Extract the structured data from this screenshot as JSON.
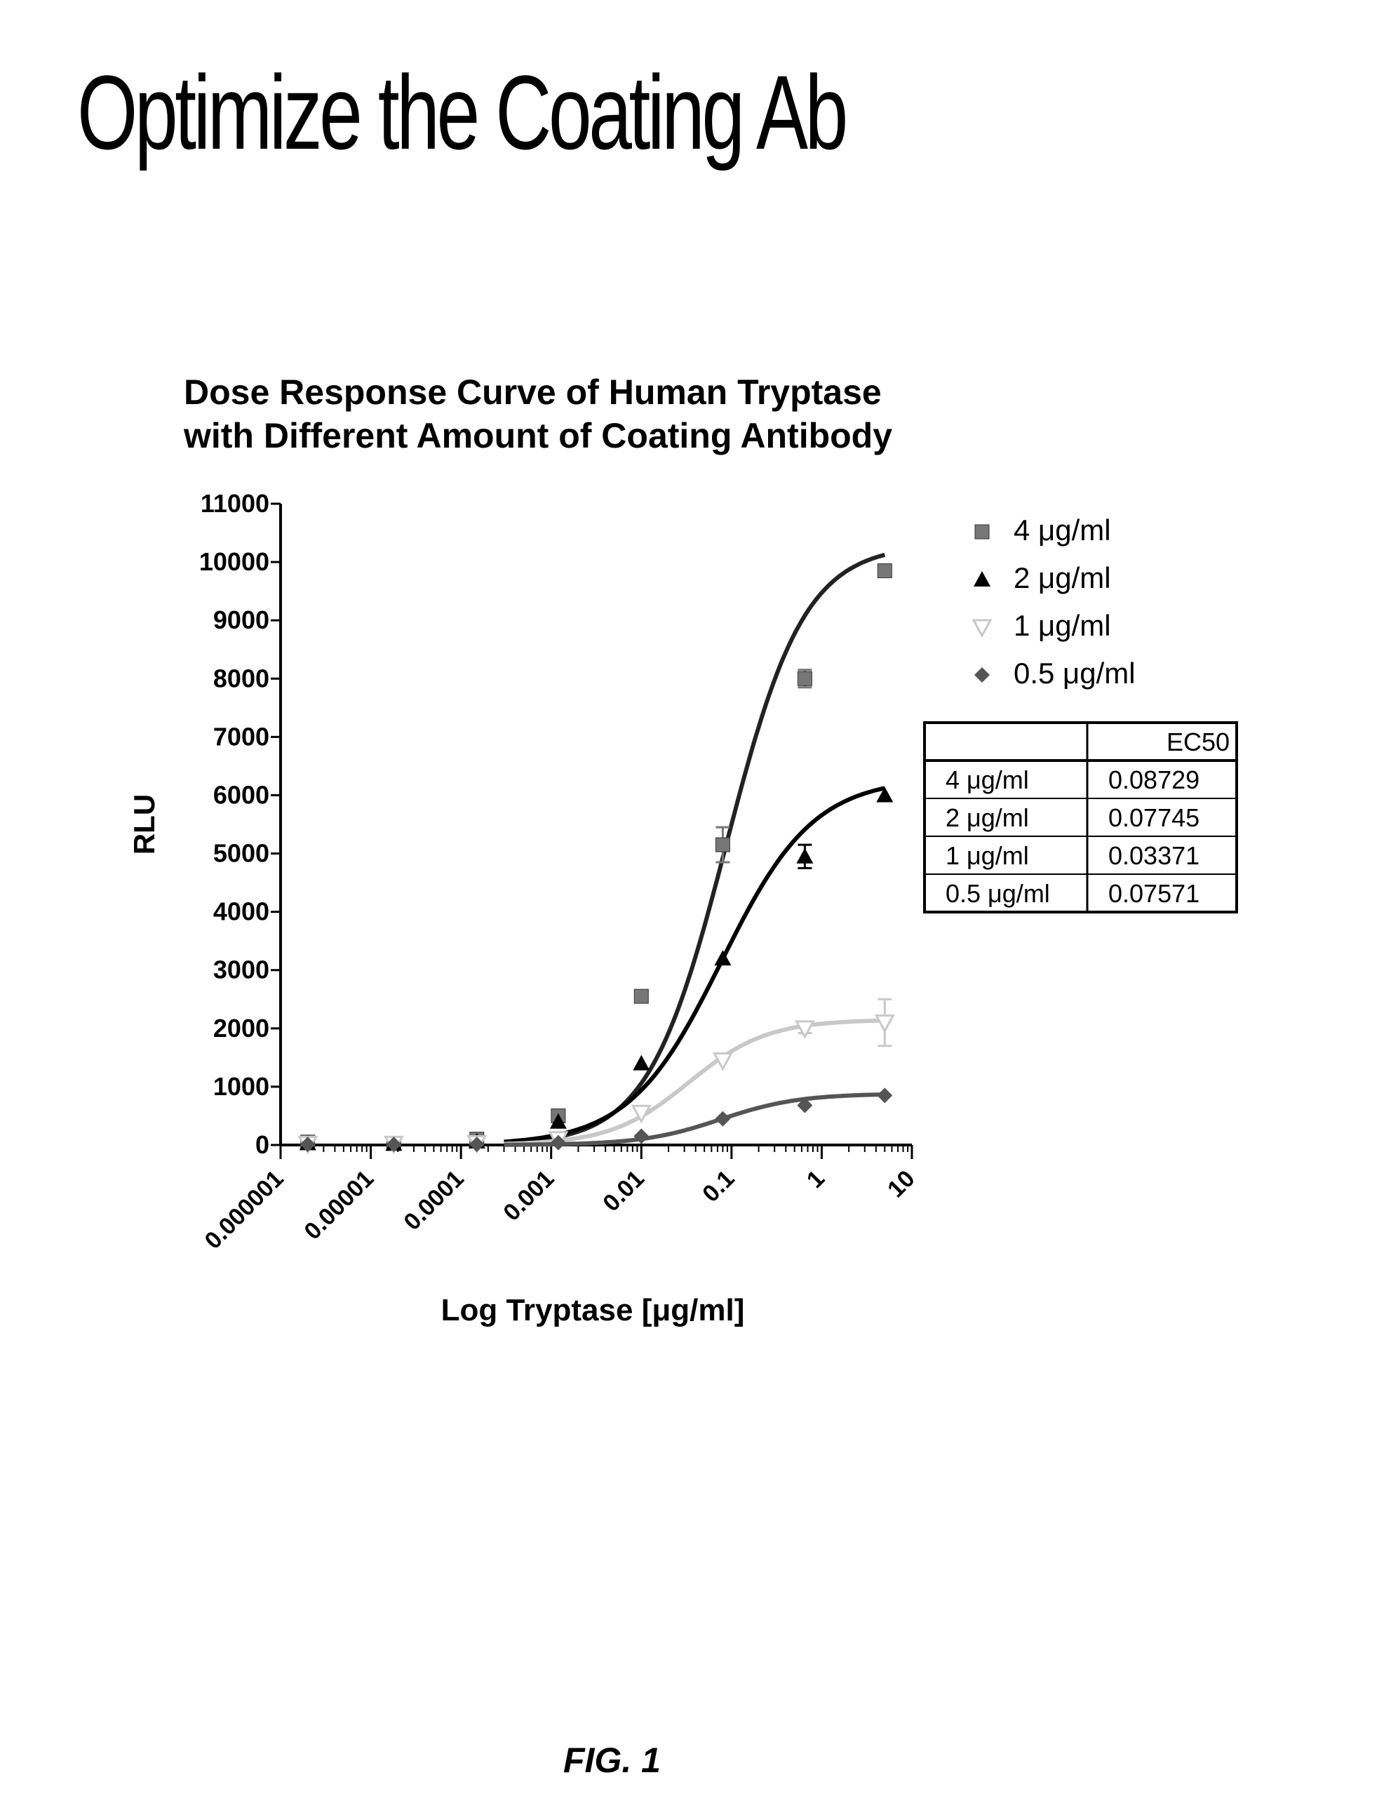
{
  "page": {
    "title": "Optimize the Coating Ab",
    "figure_label": "FIG. 1"
  },
  "chart_data": {
    "type": "scatter",
    "title": "Dose Response Curve of Human Tryptase",
    "subtitle": "with Different Amount of Coating Antibody",
    "xlabel": "Log Tryptase [μg/ml]",
    "ylabel": "RLU",
    "x_scale": "log",
    "xlim": [
      1e-06,
      10
    ],
    "ylim": [
      0,
      11000
    ],
    "x_tick_labels": [
      "0.000001",
      "0.00001",
      "0.0001",
      "0.001",
      "0.01",
      "0.1",
      "1",
      "10"
    ],
    "x_tick_values": [
      1e-06,
      1e-05,
      0.0001,
      0.001,
      0.01,
      0.1,
      1,
      10
    ],
    "y_ticks": [
      0,
      1000,
      2000,
      3000,
      4000,
      5000,
      6000,
      7000,
      8000,
      9000,
      10000,
      11000
    ],
    "legend_position": "right",
    "grid": false,
    "series": [
      {
        "name": "4 μg/ml",
        "marker": "square",
        "color": "#777777",
        "curve_color": "#222222",
        "x": [
          2e-06,
          1.8e-05,
          0.00015,
          0.0012,
          0.01,
          0.08,
          0.65,
          5
        ],
        "y": [
          50,
          30,
          100,
          500,
          2550,
          5150,
          8000,
          9850
        ],
        "err": [
          0,
          0,
          0,
          0,
          0,
          300,
          150,
          0
        ],
        "bottom": 0,
        "top": 10300,
        "ec50": 0.08729,
        "hill": 1.0
      },
      {
        "name": "2 μg/ml",
        "marker": "triangle-up",
        "color": "#000000",
        "curve_color": "#000000",
        "x": [
          2e-06,
          1.8e-05,
          0.00015,
          0.0012,
          0.01,
          0.08,
          0.65,
          5
        ],
        "y": [
          30,
          20,
          60,
          400,
          1400,
          3200,
          4950,
          6000
        ],
        "err": [
          0,
          0,
          0,
          0,
          0,
          0,
          200,
          0
        ],
        "bottom": 0,
        "top": 6300,
        "ec50": 0.07745,
        "hill": 0.85
      },
      {
        "name": "1 μg/ml",
        "marker": "triangle-down",
        "color": "#c8c8c8",
        "curve_color": "#c8c8c8",
        "x": [
          2e-06,
          1.8e-05,
          0.00015,
          0.0012,
          0.01,
          0.08,
          0.65,
          5
        ],
        "y": [
          20,
          20,
          30,
          100,
          550,
          1450,
          2000,
          2100
        ],
        "err": [
          0,
          0,
          0,
          0,
          0,
          0,
          80,
          400
        ],
        "bottom": 0,
        "top": 2150,
        "ec50": 0.03371,
        "hill": 1.0
      },
      {
        "name": "0.5 μg/ml",
        "marker": "diamond",
        "color": "#555555",
        "curve_color": "#555555",
        "x": [
          2e-06,
          1.8e-05,
          0.00015,
          0.0012,
          0.01,
          0.08,
          0.65,
          5
        ],
        "y": [
          10,
          10,
          10,
          40,
          150,
          450,
          680,
          850
        ],
        "err": [
          0,
          0,
          0,
          0,
          0,
          0,
          0,
          0
        ],
        "bottom": 0,
        "top": 880,
        "ec50": 0.07571,
        "hill": 1.0
      }
    ],
    "ec50_table": {
      "header": [
        "",
        "EC50"
      ],
      "rows": [
        [
          "4 μg/ml",
          "0.08729"
        ],
        [
          "2 μg/ml",
          "0.07745"
        ],
        [
          "1 μg/ml",
          "0.03371"
        ],
        [
          "0.5 μg/ml",
          "0.07571"
        ]
      ]
    }
  }
}
